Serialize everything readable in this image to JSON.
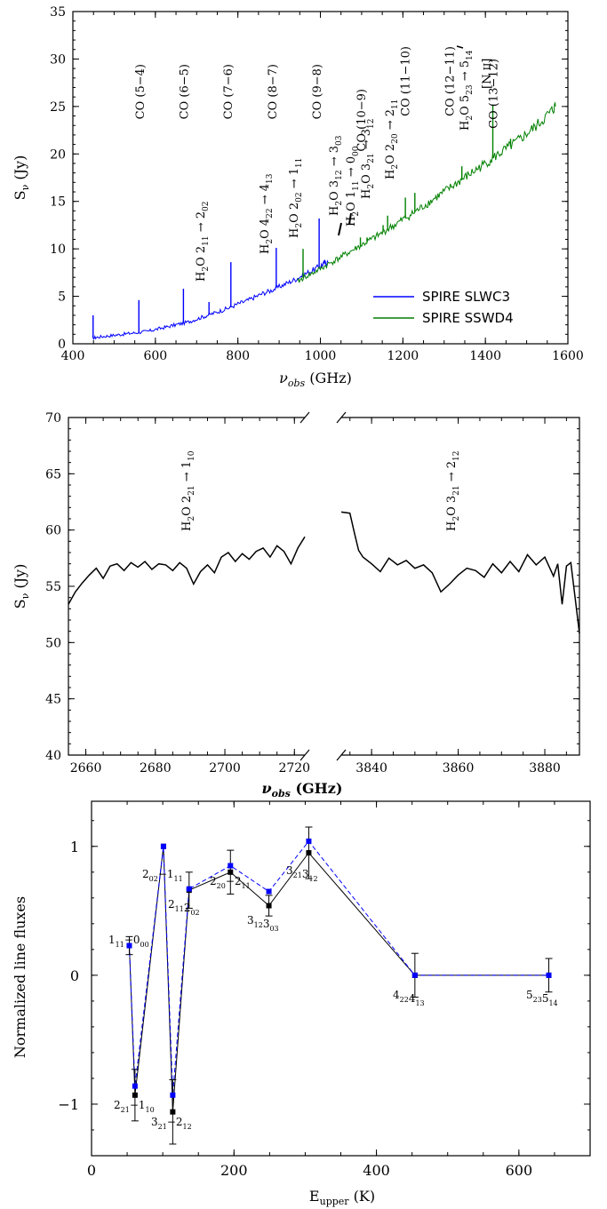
{
  "chart_data": [
    {
      "type": "line",
      "ylabel": "S_ν (Jy)",
      "xlabel": "ν_obs (GHz)",
      "xlim": [
        400,
        1600
      ],
      "ylim": [
        0,
        35
      ],
      "x_ticks": [
        "400",
        "600",
        "800",
        "1000",
        "1200",
        "1400",
        "1600"
      ],
      "y_ticks": [
        "0",
        "5",
        "10",
        "15",
        "20",
        "25",
        "30",
        "35"
      ],
      "legend_position": "bottom-right",
      "colors": {
        "SLWC3": "#0000ff",
        "SSWD4": "#008000"
      },
      "series": [
        {
          "name": "SPIRE SLWC3",
          "x": [
            447,
            460,
            480,
            500,
            520,
            540,
            560,
            580,
            600,
            620,
            640,
            660,
            680,
            700,
            720,
            740,
            760,
            780,
            800,
            820,
            840,
            860,
            880,
            900,
            920,
            940,
            960,
            980,
            1000,
            1010,
            1018
          ],
          "y": [
            0.6,
            0.7,
            0.8,
            0.9,
            1.0,
            1.1,
            1.2,
            1.3,
            1.5,
            1.7,
            1.9,
            2.1,
            2.3,
            2.6,
            2.9,
            3.2,
            3.5,
            3.8,
            4.2,
            4.5,
            4.9,
            5.3,
            5.6,
            6.0,
            6.4,
            6.8,
            7.3,
            7.7,
            8.2,
            8.5,
            8.6
          ],
          "lines": [
            {
              "x": 449,
              "y": 3.0
            },
            {
              "x": 560,
              "y": 4.6
            },
            {
              "x": 668,
              "y": 5.8
            },
            {
              "x": 730,
              "y": 4.4
            },
            {
              "x": 783,
              "y": 8.6
            },
            {
              "x": 893,
              "y": 10.1
            },
            {
              "x": 997,
              "y": 13.2
            }
          ]
        },
        {
          "name": "SPIRE SSWD4",
          "x": [
            945,
            960,
            980,
            1000,
            1020,
            1040,
            1060,
            1080,
            1100,
            1120,
            1140,
            1160,
            1180,
            1200,
            1220,
            1240,
            1260,
            1280,
            1300,
            1320,
            1340,
            1360,
            1380,
            1400,
            1420,
            1440,
            1460,
            1480,
            1500,
            1520,
            1540,
            1560,
            1570
          ],
          "y": [
            6.5,
            7.0,
            7.4,
            7.9,
            8.4,
            8.9,
            9.4,
            9.9,
            10.4,
            10.9,
            11.4,
            12.0,
            12.5,
            13.1,
            13.6,
            14.2,
            14.8,
            15.4,
            16.0,
            16.6,
            17.2,
            17.8,
            18.4,
            19.0,
            19.6,
            20.2,
            20.8,
            21.4,
            22.1,
            22.8,
            23.6,
            24.5,
            25.0
          ],
          "lines": [
            {
              "x": 958,
              "y": 10.0
            },
            {
              "x": 1097,
              "y": 11.2
            },
            {
              "x": 1113,
              "y": 11.2
            },
            {
              "x": 1152,
              "y": 12.5
            },
            {
              "x": 1163,
              "y": 13.5
            },
            {
              "x": 1206,
              "y": 15.4
            },
            {
              "x": 1229,
              "y": 15.9
            },
            {
              "x": 1343,
              "y": 18.7
            },
            {
              "x": 1418,
              "y": 25.2
            },
            {
              "x": 1461,
              "y": 21.6
            }
          ]
        }
      ],
      "legend": [
        "SPIRE SLWC3",
        "SPIRE SSWD4"
      ],
      "annotations": {
        "co": [
          "CO (5−4)",
          "CO (6−5)",
          "CO (7−6)",
          "CO (8−7)",
          "CO (9−8)",
          "CO (10−9)",
          "CO (11−10)",
          "CO (12−11)",
          "CO (13−12)"
        ],
        "water": [
          "H2O 211 → 202",
          "H2O 422 → 413",
          "H2O 202 → 111",
          "H2O 312 → 303",
          "H2O 111 → 000",
          "H2O 321 → 312",
          "H2O 220 → 211",
          "H2O 523 → 514"
        ],
        "other": [
          "[N II]"
        ]
      }
    },
    {
      "type": "line",
      "ylabel": "S_ν (Jy)",
      "xlabel": "ν_obs (GHz)",
      "broken_axis": true,
      "xlim_left": [
        2655,
        2723
      ],
      "xlim_right": [
        3833,
        3888
      ],
      "ylim": [
        40,
        70
      ],
      "x_ticks_left": [
        "2660",
        "2680",
        "2700",
        "2720"
      ],
      "x_ticks_right": [
        "3840",
        "3860",
        "3880"
      ],
      "y_ticks": [
        "40",
        "45",
        "50",
        "55",
        "60",
        "65",
        "70"
      ],
      "series": [
        {
          "name": "",
          "x": [
            2655,
            2657,
            2659,
            2661,
            2663,
            2665,
            2667,
            2669,
            2671,
            2673,
            2675,
            2677,
            2679,
            2681,
            2683,
            2685,
            2687,
            2689,
            2691,
            2693,
            2695,
            2697,
            2699,
            2701,
            2703,
            2705,
            2707,
            2709,
            2711,
            2713,
            2715,
            2717,
            2719,
            2721,
            2723
          ],
          "y": [
            53.4,
            54.5,
            55.3,
            56.0,
            56.6,
            55.7,
            56.8,
            57.0,
            56.4,
            57.1,
            56.7,
            57.2,
            56.5,
            57.0,
            56.9,
            56.4,
            57.1,
            56.6,
            55.2,
            56.3,
            56.9,
            56.2,
            57.6,
            58.0,
            57.2,
            57.9,
            57.4,
            58.1,
            58.4,
            57.6,
            58.6,
            58.1,
            57.0,
            58.4,
            59.4
          ]
        },
        {
          "name": "",
          "x": [
            3833,
            3835,
            3836,
            3837,
            3838,
            3840,
            3842,
            3844,
            3846,
            3848,
            3850,
            3852,
            3854,
            3856,
            3858,
            3860,
            3862,
            3864,
            3866,
            3868,
            3870,
            3872,
            3874,
            3876,
            3878,
            3880,
            3882,
            3883,
            3884,
            3885,
            3886,
            3887,
            3888
          ],
          "y": [
            61.6,
            61.5,
            59.8,
            58.2,
            57.6,
            57.0,
            56.3,
            57.5,
            56.9,
            57.3,
            56.6,
            56.9,
            56.2,
            54.5,
            55.2,
            56.0,
            56.6,
            56.4,
            55.8,
            57.0,
            56.2,
            57.2,
            56.3,
            57.8,
            56.9,
            57.6,
            55.9,
            57.0,
            53.4,
            56.8,
            57.1,
            54.0,
            50.8
          ]
        }
      ],
      "annotations": [
        "H2O 221 → 110",
        "H2O 321 → 212"
      ]
    },
    {
      "type": "line",
      "xlabel": "E_upper (K)",
      "ylabel": "Normalized line fluxes",
      "xlim": [
        0,
        700
      ],
      "ylim": [
        -1.4,
        1.35
      ],
      "x_ticks": [
        "0",
        "200",
        "400",
        "600"
      ],
      "y_ticks": [
        "−1",
        "0",
        "1"
      ],
      "colors": {
        "black": "#000000",
        "blue": "#0000ff"
      },
      "series": [
        {
          "name": "",
          "style": "solid",
          "x": [
            53,
            61,
            101,
            114,
            137,
            195,
            249,
            305,
            454,
            642
          ],
          "y": [
            0.23,
            -0.93,
            1.0,
            -1.06,
            0.66,
            0.8,
            0.54,
            0.95,
            0.0,
            0.0
          ],
          "err": [
            0.07,
            0.2,
            0.0,
            0.25,
            0.14,
            0.17,
            0.08,
            0.2,
            0.17,
            0.13
          ]
        },
        {
          "name": "",
          "style": "dashed",
          "x": [
            53,
            61,
            101,
            114,
            137,
            195,
            249,
            305,
            454,
            642
          ],
          "y": [
            0.23,
            -0.86,
            1.0,
            -0.93,
            0.67,
            0.85,
            0.65,
            1.04,
            0.0,
            0.0
          ]
        }
      ],
      "point_labels": [
        "111−000",
        "221−110",
        "202−111",
        "321−212",
        "211−202",
        "220−211",
        "312−303",
        "321−312",
        "422−413",
        "523−514"
      ]
    }
  ]
}
